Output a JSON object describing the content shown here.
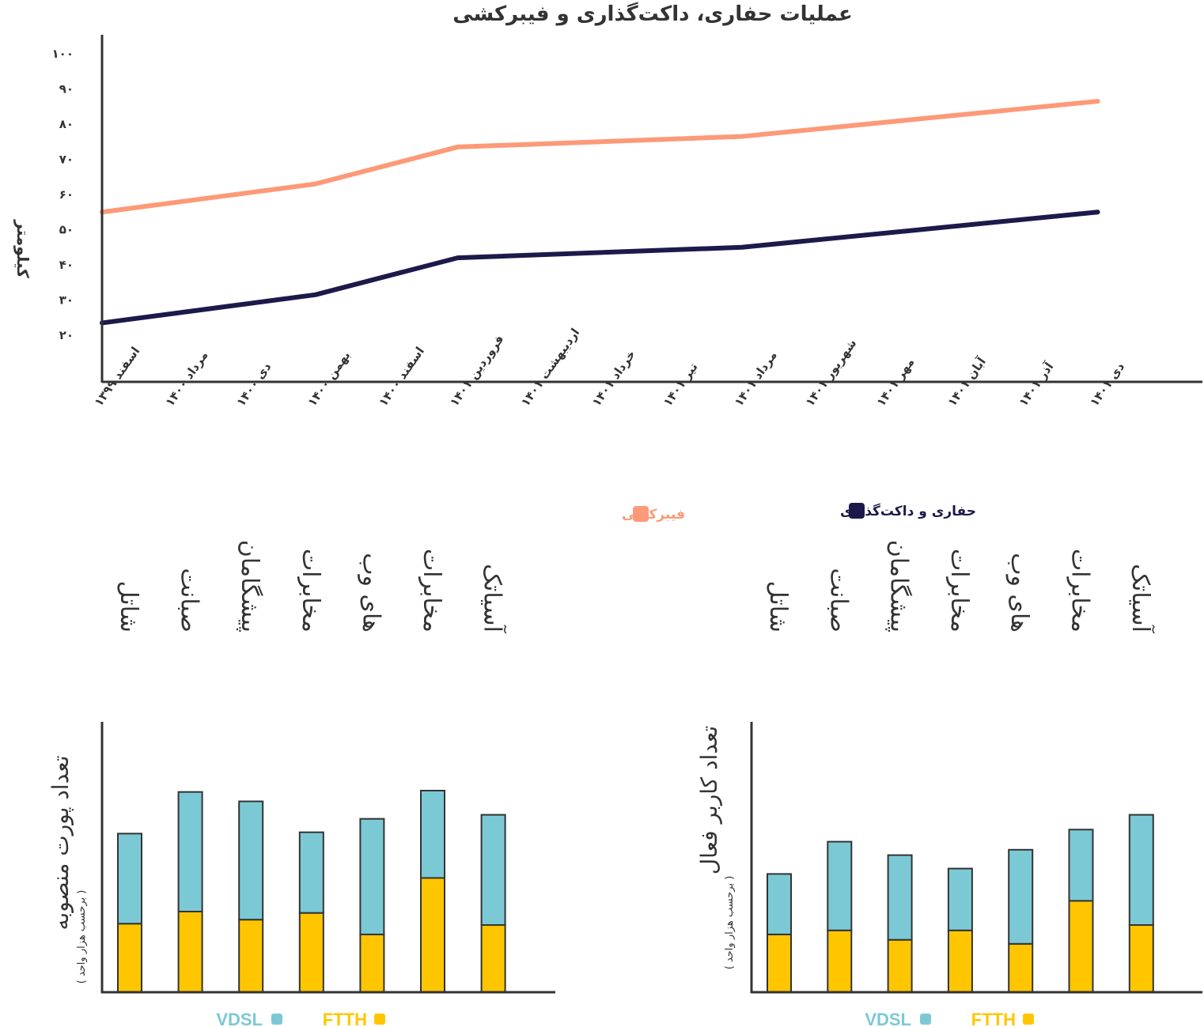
{
  "colors": {
    "fiber": "#FC9A78",
    "duct": "#1C1A4B",
    "vdsl": "#7CC9D6",
    "ftth": "#FFC600",
    "axis": "#333333"
  },
  "chart_data": [
    {
      "type": "line",
      "title": "عملیات حفاری، داکت‌گذاری و فیبرکشی",
      "ylabel": "کیلومتر",
      "xlabel": "",
      "ylim": [
        10,
        100
      ],
      "yticks": [
        20,
        30,
        40,
        50,
        60,
        70,
        80,
        90,
        100
      ],
      "ytick_labels": [
        "۲۰",
        "۳۰",
        "۴۰",
        "۵۰",
        "۶۰",
        "۷۰",
        "۸۰",
        "۹۰",
        "۱۰۰"
      ],
      "grid": false,
      "legend_position": "bottom",
      "categories": [
        "اسفند ۱۳۹۹",
        "مرداد ۱۴۰۰",
        "دی ۱۴۰۰",
        "بهمن ۱۴۰۰",
        "اسفند ۱۴۰۰",
        "فروردین ۱۴۰۱",
        "اردیبهشت ۱۴۰۱",
        "خرداد ۱۴۰۱",
        "تیر ۱۴۰۱",
        "مرداد ۱۴۰۱",
        "شهریور ۱۴۰۱",
        "مهر ۱۴۰۱",
        "آبان ۱۴۰۱",
        "آذر ۱۴۰۱",
        "دی ۱۴۰۱"
      ],
      "series": [
        {
          "name": "فیبرکشی",
          "color_key": "fiber",
          "values": [
            {
              "category": "اسفند ۱۳۹۹",
              "y": 55
            },
            {
              "category": "بهمن ۱۴۰۰",
              "y": 63
            },
            {
              "category": "فروردین ۱۴۰۱",
              "y": 73.5
            },
            {
              "category": "مرداد ۱۴۰۱",
              "y": 76.5
            },
            {
              "category": "دی ۱۴۰۱",
              "y": 86.5
            }
          ]
        },
        {
          "name": "حفاری و داکت‌گذاری",
          "color_key": "duct",
          "values": [
            {
              "category": "اسفند ۱۳۹۹",
              "y": 23.5
            },
            {
              "category": "بهمن ۱۴۰۰",
              "y": 31.5
            },
            {
              "category": "فروردین ۱۴۰۱",
              "y": 42
            },
            {
              "category": "مرداد ۱۴۰۱",
              "y": 45
            },
            {
              "category": "دی ۱۴۰۱",
              "y": 55
            }
          ]
        }
      ]
    },
    {
      "type": "bar",
      "stacked": true,
      "title": "",
      "ylabel": "تعداد پورت منصوبه",
      "ylabel_sub": "( برحسب هزار واحد )",
      "categories": [
        "شاتل",
        "صبانت",
        "پیشگامان",
        "مخابرات",
        "های وب",
        "مخابرات",
        "آسیاتک"
      ],
      "ylim": [
        0,
        100
      ],
      "legend_position": "bottom",
      "series": [
        {
          "name": "FTTH",
          "color_key": "ftth",
          "values": [
            25.5,
            30,
            27,
            29.5,
            21.5,
            42.5,
            25
          ]
        },
        {
          "name": "VDSL",
          "color_key": "vdsl",
          "values": [
            33.5,
            44.5,
            44,
            30,
            43,
            32.5,
            41
          ]
        }
      ]
    },
    {
      "type": "bar",
      "stacked": true,
      "title": "",
      "ylabel": "تعداد کاربر فعال",
      "ylabel_sub": "( برحسب هزار واحد )",
      "categories": [
        "شاتل",
        "صبانت",
        "پیشگامان",
        "مخابرات",
        "های وب",
        "مخابرات",
        "آسیاتک"
      ],
      "ylim": [
        0,
        100
      ],
      "legend_position": "bottom",
      "series": [
        {
          "name": "FTTH",
          "color_key": "ftth",
          "values": [
            21.5,
            23,
            19.5,
            23,
            18,
            34,
            25
          ]
        },
        {
          "name": "VDSL",
          "color_key": "vdsl",
          "values": [
            22.5,
            33,
            31.5,
            23,
            35,
            26.5,
            41
          ]
        }
      ]
    }
  ]
}
